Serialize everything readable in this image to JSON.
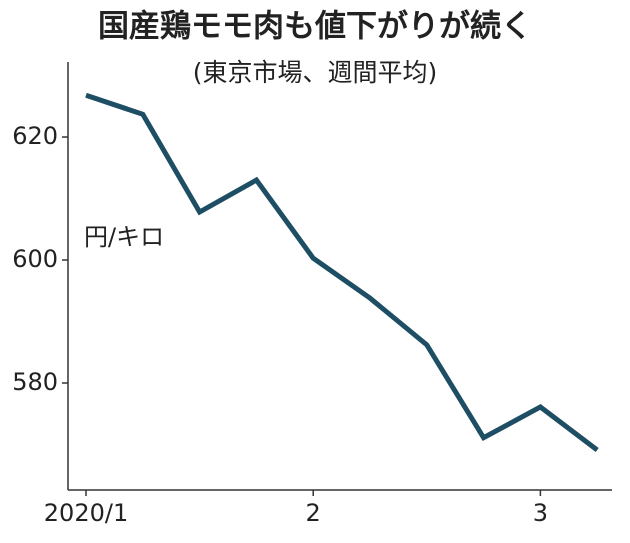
{
  "chart_data": {
    "type": "line",
    "title": "国産鶏モモ肉も値下がりが続く",
    "subtitle": "(東京市場、週間平均)",
    "y_label": "円/キロ",
    "categories": [
      "2020/1",
      null,
      null,
      null,
      "2",
      null,
      null,
      null,
      "3",
      null
    ],
    "series": [
      {
        "name": "国産鶏モモ肉",
        "color": "#1d4e64",
        "values": [
          626.8,
          623.7,
          607.8,
          613.0,
          600.3,
          593.8,
          586.2,
          571.1,
          576.1,
          569.1
        ]
      }
    ],
    "ylim": [
      562.6,
      632.2
    ],
    "yticks": [
      580,
      600,
      620
    ],
    "grid": false
  }
}
